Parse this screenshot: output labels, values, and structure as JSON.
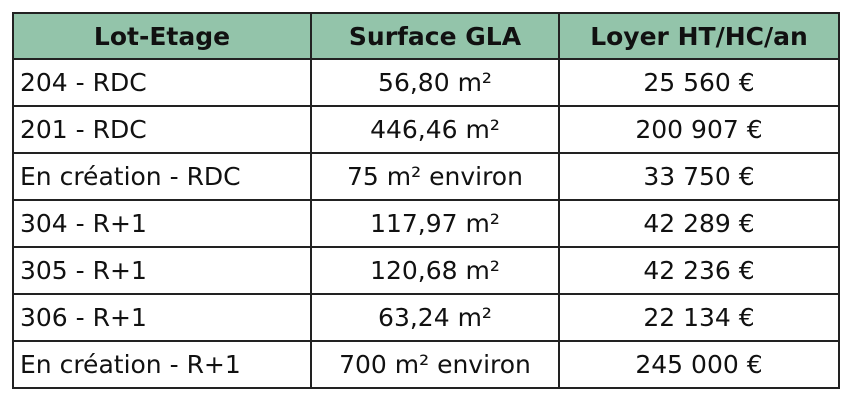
{
  "table": {
    "header": [
      "Lot-Etage",
      "Surface GLA",
      "Loyer HT/HC/an"
    ],
    "rows": [
      [
        "204 - RDC",
        "56,80 m²",
        "25 560 €"
      ],
      [
        "201 - RDC",
        "446,46 m²",
        "200 907 €"
      ],
      [
        "En création - RDC",
        "75 m² environ",
        "33 750 €"
      ],
      [
        "304 - R+1",
        "117,97 m²",
        "42 289 €"
      ],
      [
        "305 - R+1",
        "120,68 m²",
        "42 236 €"
      ],
      [
        "306 - R+1",
        "63,24 m²",
        "22 134 €"
      ],
      [
        "En création - R+1",
        "700 m² environ",
        "245 000 €"
      ]
    ]
  }
}
